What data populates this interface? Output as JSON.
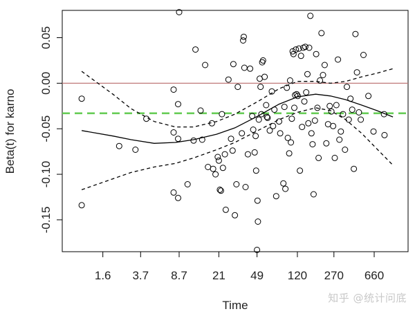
{
  "chart_data": {
    "type": "scatter",
    "xlabel": "Time",
    "ylabel": "Beta(t) for karno",
    "x_scale": "log",
    "xlim": [
      0.65,
      1400
    ],
    "ylim": [
      -0.185,
      0.08
    ],
    "x_ticks": [
      {
        "value": 1.6,
        "label": "1.6"
      },
      {
        "value": 3.7,
        "label": "3.7"
      },
      {
        "value": 8.7,
        "label": "8.7"
      },
      {
        "value": 21,
        "label": "21"
      },
      {
        "value": 49,
        "label": "49"
      },
      {
        "value": 120,
        "label": "120"
      },
      {
        "value": 270,
        "label": "270"
      },
      {
        "value": 660,
        "label": "660"
      }
    ],
    "y_ticks": [
      {
        "value": 0.05,
        "label": "0.05"
      },
      {
        "value": 0.0,
        "label": "0.00"
      },
      {
        "value": -0.05,
        "label": "-0.05"
      },
      {
        "value": -0.1,
        "label": "-0.10"
      },
      {
        "value": -0.15,
        "label": "-0.15"
      }
    ],
    "reference_lines": [
      {
        "type": "hline",
        "y": 0.0,
        "color": "#c07878",
        "style": "solid"
      },
      {
        "type": "hline",
        "y": -0.033,
        "color": "#66cc55",
        "style": "dashed"
      }
    ],
    "series": [
      {
        "type": "line",
        "style": "solid",
        "color": "#000000",
        "x": [
          1,
          2,
          3,
          5,
          8,
          12,
          20,
          30,
          50,
          80,
          120,
          180,
          250,
          350,
          500,
          700,
          1000
        ],
        "y": [
          -0.052,
          -0.058,
          -0.062,
          -0.066,
          -0.065,
          -0.062,
          -0.056,
          -0.049,
          -0.036,
          -0.023,
          -0.015,
          -0.012,
          -0.014,
          -0.018,
          -0.024,
          -0.03,
          -0.037
        ]
      },
      {
        "type": "line",
        "style": "dashed",
        "color": "#000000",
        "x": [
          1,
          2,
          3,
          5,
          8,
          12,
          20,
          30,
          50,
          80,
          120,
          180,
          250,
          350,
          500,
          700,
          1000
        ],
        "y": [
          0.013,
          -0.012,
          -0.028,
          -0.042,
          -0.048,
          -0.048,
          -0.042,
          -0.034,
          -0.02,
          -0.006,
          0.002,
          0.002,
          0.0,
          0.002,
          0.007,
          0.011,
          0.016
        ]
      },
      {
        "type": "line",
        "style": "dashed",
        "color": "#000000",
        "x": [
          1,
          2,
          3,
          5,
          8,
          12,
          20,
          30,
          50,
          80,
          120,
          180,
          250,
          350,
          500,
          700,
          1000
        ],
        "y": [
          -0.117,
          -0.105,
          -0.098,
          -0.092,
          -0.088,
          -0.082,
          -0.073,
          -0.065,
          -0.052,
          -0.04,
          -0.032,
          -0.027,
          -0.03,
          -0.04,
          -0.055,
          -0.072,
          -0.09
        ]
      },
      {
        "type": "scatter",
        "marker": "open-circle",
        "color": "#000000",
        "points": [
          [
            1,
            -0.017
          ],
          [
            1,
            -0.134
          ],
          [
            2.3,
            -0.069
          ],
          [
            3.3,
            -0.073
          ],
          [
            4.2,
            -0.039
          ],
          [
            7.7,
            -0.007
          ],
          [
            7.7,
            -0.054
          ],
          [
            7.7,
            -0.12
          ],
          [
            8.5,
            -0.023
          ],
          [
            8.5,
            -0.061
          ],
          [
            8.5,
            -0.126
          ],
          [
            8.7,
            0.078
          ],
          [
            10.5,
            -0.111
          ],
          [
            12,
            -0.063
          ],
          [
            12.5,
            0.037
          ],
          [
            14,
            -0.03
          ],
          [
            14.5,
            -0.062
          ],
          [
            15.5,
            0.02
          ],
          [
            16.5,
            -0.092
          ],
          [
            18,
            -0.044
          ],
          [
            18.5,
            -0.094
          ],
          [
            19.5,
            -0.1
          ],
          [
            20.5,
            -0.081
          ],
          [
            21,
            -0.085
          ],
          [
            21.5,
            -0.117
          ],
          [
            22,
            -0.118
          ],
          [
            22.5,
            -0.034
          ],
          [
            23,
            -0.093
          ],
          [
            24,
            -0.078
          ],
          [
            24.5,
            -0.139
          ],
          [
            26,
            0.004
          ],
          [
            27.5,
            -0.061
          ],
          [
            28.5,
            -0.074
          ],
          [
            29,
            0.021
          ],
          [
            30,
            -0.145
          ],
          [
            31,
            -0.111
          ],
          [
            32,
            -0.004
          ],
          [
            35,
            -0.055
          ],
          [
            36,
            0.047
          ],
          [
            36.5,
            0.051
          ],
          [
            37,
            0.017
          ],
          [
            38,
            -0.114
          ],
          [
            40,
            -0.078
          ],
          [
            42,
            0.016
          ],
          [
            44,
            -0.036
          ],
          [
            45,
            -0.051
          ],
          [
            46.5,
            -0.076
          ],
          [
            47.5,
            -0.058
          ],
          [
            48,
            -0.096
          ],
          [
            49,
            -0.183
          ],
          [
            49.5,
            -0.129
          ],
          [
            50,
            -0.152
          ],
          [
            51,
            -0.04
          ],
          [
            52,
            0.005
          ],
          [
            53,
            -0.004
          ],
          [
            54,
            -0.034
          ],
          [
            55,
            0.023
          ],
          [
            56,
            0.025
          ],
          [
            58,
            0.007
          ],
          [
            60,
            -0.024
          ],
          [
            61,
            -0.037
          ],
          [
            62,
            -0.038
          ],
          [
            65,
            -0.052
          ],
          [
            68,
            -0.009
          ],
          [
            70,
            -0.047
          ],
          [
            72,
            -0.029
          ],
          [
            75,
            -0.124
          ],
          [
            80,
            -0.042
          ],
          [
            82,
            -0.055
          ],
          [
            88,
            -0.11
          ],
          [
            90,
            -0.026
          ],
          [
            92,
            -0.116
          ],
          [
            95,
            -0.005
          ],
          [
            97,
            -0.06
          ],
          [
            100,
            -0.077
          ],
          [
            102,
            0.003
          ],
          [
            104,
            -0.065
          ],
          [
            106,
            -0.039
          ],
          [
            108,
            0.035
          ],
          [
            110,
            0.032
          ],
          [
            112,
            -0.027
          ],
          [
            114,
            -0.013
          ],
          [
            116,
            0.037
          ],
          [
            118,
            -0.012
          ],
          [
            121,
            -0.014
          ],
          [
            124,
            0.038
          ],
          [
            127,
            -0.096
          ],
          [
            130,
            0.03
          ],
          [
            133,
            -0.048
          ],
          [
            137,
            0.039
          ],
          [
            140,
            -0.02
          ],
          [
            143,
            0.04
          ],
          [
            146,
            -0.01
          ],
          [
            150,
            0.01
          ],
          [
            153,
            -0.044
          ],
          [
            156,
            0.039
          ],
          [
            160,
            0.074
          ],
          [
            164,
            -0.055
          ],
          [
            168,
            -0.067
          ],
          [
            172,
            -0.122
          ],
          [
            177,
            -0.041
          ],
          [
            182,
            0.032
          ],
          [
            187,
            -0.027
          ],
          [
            192,
            -0.082
          ],
          [
            198,
            0.003
          ],
          [
            205,
            0.055
          ],
          [
            212,
            0.009
          ],
          [
            220,
            0.02
          ],
          [
            228,
            -0.066
          ],
          [
            237,
            -0.045
          ],
          [
            246,
            -0.025
          ],
          [
            255,
            -0.031
          ],
          [
            265,
            -0.047
          ],
          [
            275,
            -0.082
          ],
          [
            285,
            -0.024
          ],
          [
            295,
            0.026
          ],
          [
            305,
            -0.062
          ],
          [
            315,
            -0.053
          ],
          [
            330,
            -0.034
          ],
          [
            345,
            -0.073
          ],
          [
            360,
            -0.004
          ],
          [
            375,
            -0.04
          ],
          [
            390,
            -0.017
          ],
          [
            405,
            -0.029
          ],
          [
            420,
            -0.094
          ],
          [
            435,
            0.054
          ],
          [
            450,
            0.012
          ],
          [
            470,
            -0.032
          ],
          [
            490,
            -0.04
          ],
          [
            520,
            0.031
          ],
          [
            580,
            -0.014
          ],
          [
            650,
            -0.053
          ],
          [
            820,
            -0.034
          ],
          [
            830,
            -0.057
          ]
        ]
      }
    ]
  },
  "watermark": "知乎 @统计问底"
}
